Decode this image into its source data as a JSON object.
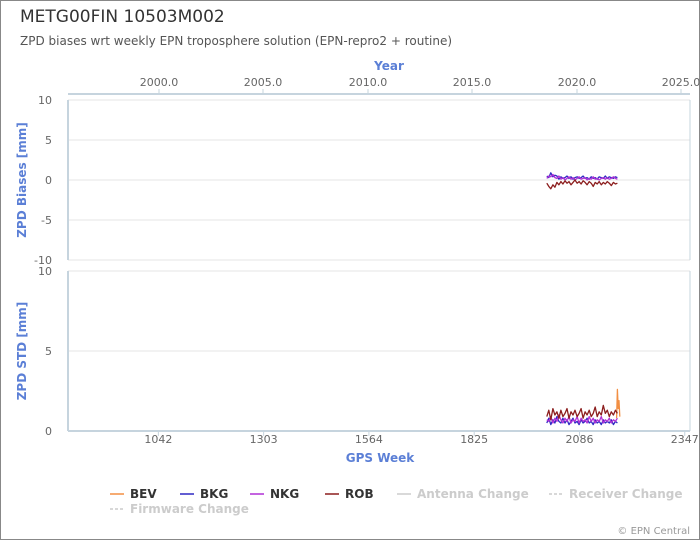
{
  "header": {
    "title": "METG00FIN 10503M002",
    "subtitle": "ZPD biases wrt weekly EPN troposphere solution (EPN-repro2 + routine)"
  },
  "credits": "© EPN Central",
  "chart_data": {
    "type": "line",
    "top_axis": {
      "title": "Year",
      "ticks": [
        "2000.0",
        "2005.0",
        "2010.0",
        "2015.0",
        "2020.0",
        "2025.0"
      ]
    },
    "x": {
      "label": "GPS Week",
      "range": [
        818,
        2360
      ],
      "ticks": [
        1042,
        1303,
        1564,
        1825,
        2086,
        2347
      ]
    },
    "panels": [
      {
        "ylabel": "ZPD Biases [mm]",
        "ylim": [
          -10,
          10
        ],
        "yticks": [
          10,
          5,
          0,
          -5,
          -10
        ],
        "series": [
          {
            "name": "BEV",
            "color": "#f28f43",
            "points": []
          },
          {
            "name": "BKG",
            "color": "#2f29c2",
            "points": [
              [
                2005,
                0.5
              ],
              [
                2010,
                0.3
              ],
              [
                2015,
                0.9
              ],
              [
                2020,
                0.4
              ],
              [
                2025,
                0.6
              ],
              [
                2030,
                0.5
              ],
              [
                2035,
                0.1
              ],
              [
                2040,
                0.4
              ],
              [
                2045,
                0.2
              ],
              [
                2050,
                0.3
              ],
              [
                2055,
                0.5
              ],
              [
                2060,
                0.2
              ],
              [
                2065,
                0.4
              ],
              [
                2070,
                0.1
              ],
              [
                2075,
                0.3
              ],
              [
                2080,
                0.4
              ],
              [
                2085,
                0.2
              ],
              [
                2090,
                0.3
              ],
              [
                2095,
                0.5
              ],
              [
                2100,
                0.2
              ],
              [
                2105,
                0.3
              ],
              [
                2110,
                0.1
              ],
              [
                2115,
                0.4
              ],
              [
                2120,
                0.2
              ],
              [
                2125,
                0.3
              ],
              [
                2130,
                0.1
              ],
              [
                2135,
                0.4
              ],
              [
                2140,
                0.3
              ],
              [
                2145,
                0.2
              ],
              [
                2150,
                0.5
              ],
              [
                2155,
                0.2
              ],
              [
                2160,
                0.4
              ],
              [
                2165,
                0.3
              ],
              [
                2170,
                0.2
              ],
              [
                2175,
                0.4
              ],
              [
                2180,
                0.3
              ]
            ]
          },
          {
            "name": "NKG",
            "color": "#b031d6",
            "points": [
              [
                2005,
                0.2
              ],
              [
                2010,
                0.5
              ],
              [
                2015,
                0.4
              ],
              [
                2020,
                0.7
              ],
              [
                2025,
                0.3
              ],
              [
                2030,
                0.2
              ],
              [
                2035,
                0.5
              ],
              [
                2040,
                0.1
              ],
              [
                2045,
                0.3
              ],
              [
                2050,
                0.0
              ],
              [
                2055,
                0.2
              ],
              [
                2060,
                0.4
              ],
              [
                2065,
                0.1
              ],
              [
                2070,
                0.3
              ],
              [
                2075,
                0.0
              ],
              [
                2080,
                0.2
              ],
              [
                2085,
                0.4
              ],
              [
                2090,
                0.1
              ],
              [
                2095,
                0.2
              ],
              [
                2100,
                0.3
              ],
              [
                2105,
                0.0
              ],
              [
                2110,
                0.2
              ],
              [
                2115,
                0.1
              ],
              [
                2120,
                0.4
              ],
              [
                2125,
                0.1
              ],
              [
                2130,
                0.2
              ],
              [
                2135,
                0.0
              ],
              [
                2140,
                0.2
              ],
              [
                2145,
                0.3
              ],
              [
                2150,
                0.1
              ],
              [
                2155,
                0.3
              ],
              [
                2160,
                0.1
              ],
              [
                2165,
                0.2
              ],
              [
                2170,
                0.4
              ],
              [
                2175,
                0.2
              ],
              [
                2180,
                0.1
              ]
            ]
          },
          {
            "name": "ROB",
            "color": "#8c1e1e",
            "points": [
              [
                2005,
                -0.4
              ],
              [
                2010,
                -0.8
              ],
              [
                2015,
                -1.1
              ],
              [
                2020,
                -0.6
              ],
              [
                2025,
                -0.9
              ],
              [
                2030,
                -0.3
              ],
              [
                2035,
                -0.6
              ],
              [
                2040,
                -0.2
              ],
              [
                2045,
                -0.5
              ],
              [
                2050,
                -0.1
              ],
              [
                2055,
                -0.4
              ],
              [
                2060,
                -0.2
              ],
              [
                2065,
                -0.6
              ],
              [
                2070,
                -0.3
              ],
              [
                2075,
                0.0
              ],
              [
                2080,
                -0.4
              ],
              [
                2085,
                -0.2
              ],
              [
                2090,
                -0.5
              ],
              [
                2095,
                -0.1
              ],
              [
                2100,
                -0.3
              ],
              [
                2105,
                -0.6
              ],
              [
                2110,
                -0.2
              ],
              [
                2115,
                -0.4
              ],
              [
                2120,
                -0.8
              ],
              [
                2125,
                -0.3
              ],
              [
                2130,
                -0.5
              ],
              [
                2135,
                -0.2
              ],
              [
                2140,
                -0.6
              ],
              [
                2145,
                -0.3
              ],
              [
                2150,
                -0.5
              ],
              [
                2155,
                -0.2
              ],
              [
                2160,
                -0.4
              ],
              [
                2165,
                -0.7
              ],
              [
                2170,
                -0.3
              ],
              [
                2175,
                -0.5
              ],
              [
                2180,
                -0.4
              ]
            ]
          }
        ]
      },
      {
        "ylabel": "ZPD STD [mm]",
        "ylim": [
          0,
          10
        ],
        "yticks": [
          10,
          5,
          0
        ],
        "series": [
          {
            "name": "BEV",
            "color": "#f28f43",
            "points": [
              [
                2178,
                0.8
              ],
              [
                2180,
                2.6
              ],
              [
                2182,
                1.4
              ],
              [
                2184,
                1.9
              ],
              [
                2186,
                0.9
              ]
            ]
          },
          {
            "name": "BKG",
            "color": "#2f29c2",
            "points": [
              [
                2005,
                0.5
              ],
              [
                2010,
                0.8
              ],
              [
                2015,
                0.4
              ],
              [
                2020,
                0.7
              ],
              [
                2025,
                0.5
              ],
              [
                2030,
                0.9
              ],
              [
                2035,
                0.6
              ],
              [
                2040,
                0.5
              ],
              [
                2045,
                0.8
              ],
              [
                2050,
                0.5
              ],
              [
                2055,
                0.7
              ],
              [
                2060,
                0.4
              ],
              [
                2065,
                0.6
              ],
              [
                2070,
                0.8
              ],
              [
                2075,
                0.5
              ],
              [
                2080,
                0.6
              ],
              [
                2085,
                0.4
              ],
              [
                2090,
                0.7
              ],
              [
                2095,
                0.5
              ],
              [
                2100,
                0.6
              ],
              [
                2105,
                0.8
              ],
              [
                2110,
                0.5
              ],
              [
                2115,
                0.6
              ],
              [
                2120,
                0.4
              ],
              [
                2125,
                0.7
              ],
              [
                2130,
                0.5
              ],
              [
                2135,
                0.6
              ],
              [
                2140,
                0.4
              ],
              [
                2145,
                0.7
              ],
              [
                2150,
                0.5
              ],
              [
                2155,
                0.6
              ],
              [
                2160,
                0.5
              ],
              [
                2165,
                0.7
              ],
              [
                2170,
                0.4
              ],
              [
                2175,
                0.6
              ],
              [
                2180,
                0.5
              ]
            ]
          },
          {
            "name": "NKG",
            "color": "#b031d6",
            "points": [
              [
                2005,
                0.7
              ],
              [
                2010,
                0.6
              ],
              [
                2015,
                0.9
              ],
              [
                2020,
                0.5
              ],
              [
                2025,
                0.8
              ],
              [
                2030,
                0.6
              ],
              [
                2035,
                1.0
              ],
              [
                2040,
                0.7
              ],
              [
                2045,
                0.5
              ],
              [
                2050,
                0.8
              ],
              [
                2055,
                0.6
              ],
              [
                2060,
                0.9
              ],
              [
                2065,
                0.5
              ],
              [
                2070,
                0.7
              ],
              [
                2075,
                0.6
              ],
              [
                2080,
                0.9
              ],
              [
                2085,
                0.5
              ],
              [
                2090,
                0.8
              ],
              [
                2095,
                0.6
              ],
              [
                2100,
                0.7
              ],
              [
                2105,
                0.5
              ],
              [
                2110,
                0.9
              ],
              [
                2115,
                0.6
              ],
              [
                2120,
                0.8
              ],
              [
                2125,
                0.5
              ],
              [
                2130,
                0.7
              ],
              [
                2135,
                0.6
              ],
              [
                2140,
                0.9
              ],
              [
                2145,
                0.5
              ],
              [
                2150,
                0.7
              ],
              [
                2155,
                0.6
              ],
              [
                2160,
                0.8
              ],
              [
                2165,
                0.5
              ],
              [
                2170,
                0.7
              ],
              [
                2175,
                0.6
              ],
              [
                2180,
                0.8
              ]
            ]
          },
          {
            "name": "ROB",
            "color": "#8c1e1e",
            "points": [
              [
                2005,
                0.9
              ],
              [
                2010,
                1.3
              ],
              [
                2015,
                0.7
              ],
              [
                2020,
                1.4
              ],
              [
                2025,
                1.0
              ],
              [
                2030,
                1.2
              ],
              [
                2035,
                0.8
              ],
              [
                2040,
                1.3
              ],
              [
                2045,
                0.9
              ],
              [
                2050,
                1.1
              ],
              [
                2055,
                1.4
              ],
              [
                2060,
                0.8
              ],
              [
                2065,
                1.2
              ],
              [
                2070,
                1.0
              ],
              [
                2075,
                1.3
              ],
              [
                2080,
                0.9
              ],
              [
                2085,
                1.1
              ],
              [
                2090,
                1.4
              ],
              [
                2095,
                0.8
              ],
              [
                2100,
                1.2
              ],
              [
                2105,
                1.0
              ],
              [
                2110,
                1.3
              ],
              [
                2115,
                0.9
              ],
              [
                2120,
                1.1
              ],
              [
                2125,
                1.5
              ],
              [
                2130,
                0.9
              ],
              [
                2135,
                1.2
              ],
              [
                2140,
                1.0
              ],
              [
                2145,
                1.6
              ],
              [
                2150,
                1.1
              ],
              [
                2155,
                1.3
              ],
              [
                2160,
                0.9
              ],
              [
                2165,
                1.2
              ],
              [
                2170,
                1.0
              ],
              [
                2175,
                1.3
              ],
              [
                2180,
                1.1
              ]
            ]
          }
        ]
      }
    ],
    "legend": {
      "placement": "bottom",
      "items": [
        {
          "label": "BEV",
          "color": "#f28f43",
          "style": "solid",
          "active": true
        },
        {
          "label": "BKG",
          "color": "#2f29c2",
          "style": "solid",
          "active": true
        },
        {
          "label": "NKG",
          "color": "#b031d6",
          "style": "solid",
          "active": true
        },
        {
          "label": "ROB",
          "color": "#8c1e1e",
          "style": "solid",
          "active": true
        },
        {
          "label": "Antenna Change",
          "color": "#cccccc",
          "style": "solid",
          "active": false
        },
        {
          "label": "Receiver Change",
          "color": "#cccccc",
          "style": "dashed",
          "active": false
        },
        {
          "label": "Firmware Change",
          "color": "#cccccc",
          "style": "dashed",
          "active": false
        }
      ]
    }
  }
}
